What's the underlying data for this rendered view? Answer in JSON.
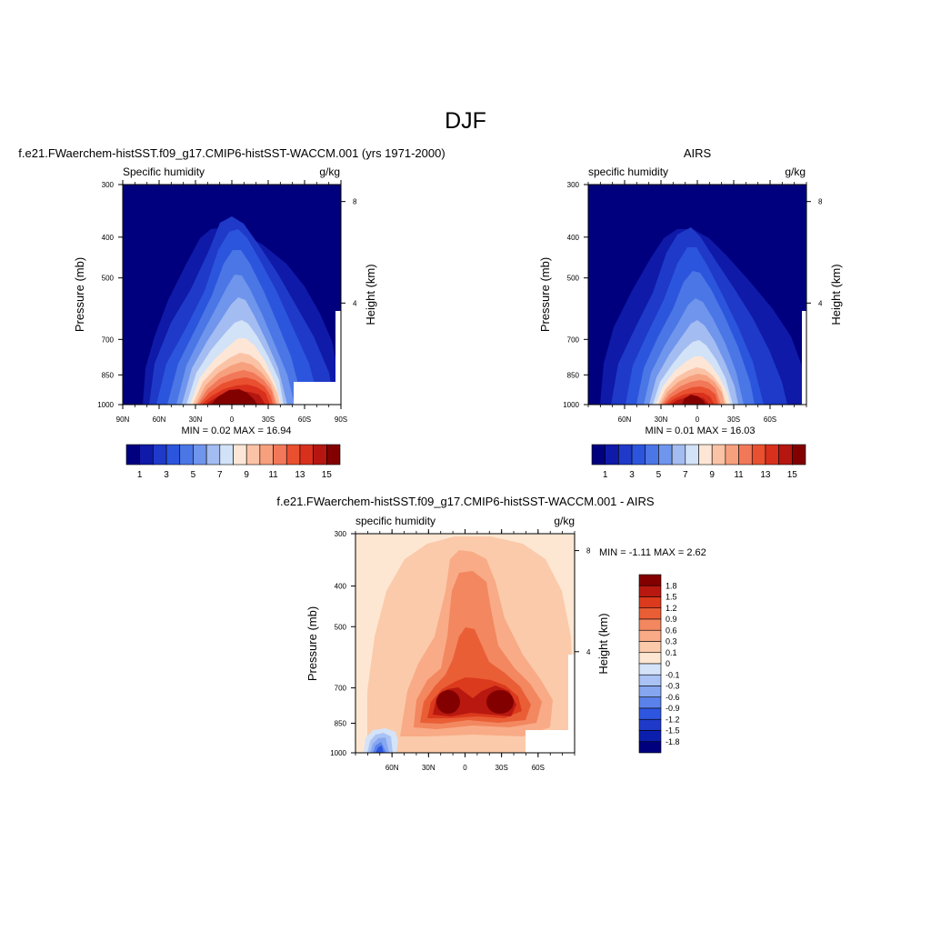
{
  "page": {
    "title": "DJF"
  },
  "panels": [
    {
      "id": "model",
      "header": "f.e21.FWaerchem-histSST.f09_g17.CMIP6-histSST-WACCM.001 (yrs 1971-2000)",
      "variable": "Specific humidity",
      "units": "g/kg",
      "ylabel": "Pressure (mb)",
      "ylabel_right": "Height (km)",
      "minmax": "MIN =   0.02  MAX =  16.94",
      "cmap": "model"
    },
    {
      "id": "obs",
      "header": "AIRS",
      "variable": "specific humidity",
      "units": "g/kg",
      "ylabel": "Pressure (mb)",
      "ylabel_right": "Height (km)",
      "minmax": "MIN =   0.01  MAX =  16.03",
      "cmap": "model"
    },
    {
      "id": "diff",
      "header": "f.e21.FWaerchem-histSST.f09_g17.CMIP6-histSST-WACCM.001 - AIRS",
      "variable": "specific humidity",
      "units": "g/kg",
      "ylabel": "Pressure (mb)",
      "ylabel_right": "Height (km)",
      "minmax": "MIN =  -1.11  MAX =   2.62",
      "cmap": "diff"
    }
  ],
  "colors": {
    "model": [
      "#00007f",
      "#0f1aa8",
      "#1f3ac8",
      "#2c55dd",
      "#4a76e6",
      "#6f95ec",
      "#a3bcf1",
      "#d2e2f7",
      "#fde6d6",
      "#fbc3a6",
      "#f7a07e",
      "#f2785a",
      "#e9502f",
      "#d8301c",
      "#b51710",
      "#830000"
    ],
    "diff": [
      "#00007f",
      "#0b1eae",
      "#1f3ac8",
      "#2f56e0",
      "#5a82ea",
      "#86a6f0",
      "#aac3f4",
      "#d4e3f8",
      "#fde7d3",
      "#fbcaaa",
      "#f8ab86",
      "#f28760",
      "#ea5e36",
      "#db3a1d",
      "#b8180f",
      "#830000"
    ]
  },
  "chart_data": [
    {
      "type": "heatmap",
      "panel": "model",
      "title": "Specific humidity",
      "units": "g/kg",
      "ylabel": "Pressure (mb)",
      "y2label": "Height (km)",
      "yticks": [
        300,
        400,
        500,
        700,
        850,
        1000
      ],
      "y2ticks": [
        4,
        8
      ],
      "xticks": [
        "90N",
        "60N",
        "30N",
        "0",
        "30S",
        "60S",
        "90S"
      ],
      "xlim": [
        90,
        -90
      ],
      "ylim": [
        1000,
        300
      ],
      "ylog": true,
      "levels": [
        1,
        2,
        3,
        4,
        5,
        6,
        7,
        8,
        9,
        10,
        11,
        12,
        13,
        14,
        15
      ],
      "colorbar_labels": [
        "1",
        "3",
        "5",
        "7",
        "9",
        "11",
        "13",
        "15"
      ],
      "min": 0.02,
      "max": 16.94
    },
    {
      "type": "heatmap",
      "panel": "obs",
      "title": "specific humidity",
      "units": "g/kg",
      "ylabel": "Pressure (mb)",
      "y2label": "Height (km)",
      "yticks": [
        300,
        400,
        500,
        700,
        850,
        1000
      ],
      "y2ticks": [
        4,
        8
      ],
      "xticks": [
        "60N",
        "30N",
        "0",
        "30S",
        "60S"
      ],
      "xlim": [
        90,
        -90
      ],
      "ylim": [
        1000,
        300
      ],
      "ylog": true,
      "levels": [
        1,
        2,
        3,
        4,
        5,
        6,
        7,
        8,
        9,
        10,
        11,
        12,
        13,
        14,
        15
      ],
      "colorbar_labels": [
        "1",
        "3",
        "5",
        "7",
        "9",
        "11",
        "13",
        "15"
      ],
      "min": 0.01,
      "max": 16.03
    },
    {
      "type": "heatmap",
      "panel": "diff",
      "title": "specific humidity",
      "units": "g/kg",
      "ylabel": "Pressure (mb)",
      "y2label": "Height (km)",
      "yticks": [
        300,
        400,
        500,
        700,
        850,
        1000
      ],
      "y2ticks": [
        4,
        8
      ],
      "xticks": [
        "60N",
        "30N",
        "0",
        "30S",
        "60S"
      ],
      "xlim": [
        90,
        -90
      ],
      "ylim": [
        1000,
        300
      ],
      "ylog": true,
      "levels": [
        -1.8,
        -1.5,
        -1.2,
        -0.9,
        -0.6,
        -0.3,
        -0.1,
        0,
        0.1,
        0.3,
        0.6,
        0.9,
        1.2,
        1.5,
        1.8
      ],
      "colorbar_labels": [
        "1.8",
        "1.5",
        "1.2",
        "0.9",
        "0.6",
        "0.3",
        "0.1",
        "0",
        "-0.1",
        "-0.3",
        "-0.6",
        "-0.9",
        "-1.2",
        "-1.5",
        "-1.8"
      ],
      "min": -1.11,
      "max": 2.62
    }
  ]
}
